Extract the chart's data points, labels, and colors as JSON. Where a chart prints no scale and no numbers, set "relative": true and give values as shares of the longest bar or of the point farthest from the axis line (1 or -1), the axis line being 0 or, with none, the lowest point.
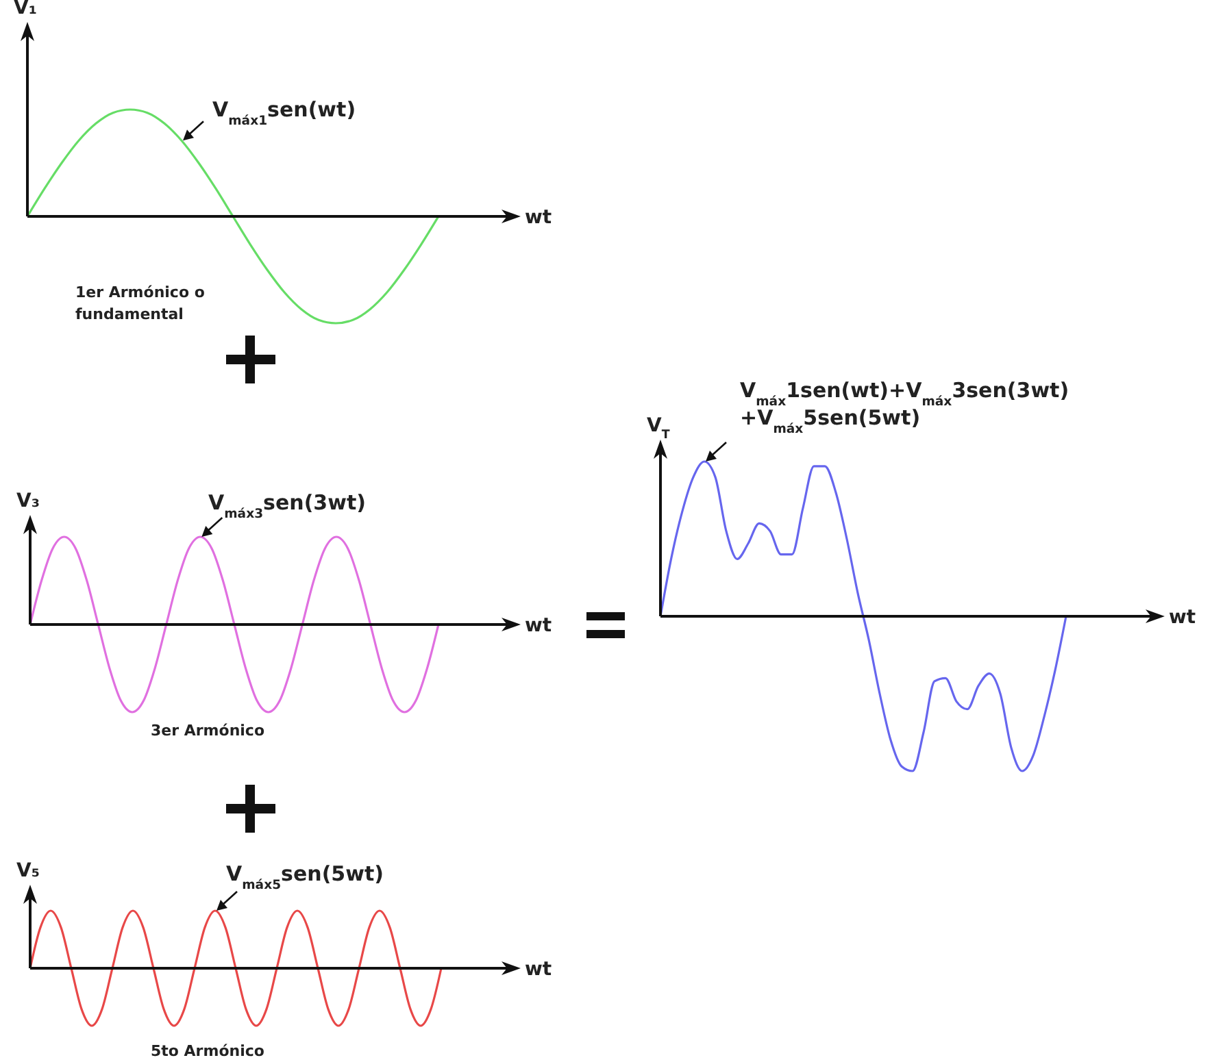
{
  "chart_data": [
    {
      "type": "line",
      "relative": true,
      "ylabel": "V₁",
      "xlabel": "wt",
      "annotations": [
        "V$_{máx1}$sen(wt)",
        "1er Armónico o fundamental"
      ],
      "categories": [
        null,
        null,
        null,
        null,
        null,
        null,
        null,
        null,
        null,
        null,
        null,
        null,
        null,
        null,
        null,
        null,
        null,
        null,
        null,
        null,
        null,
        null,
        null,
        null,
        null
      ],
      "series": [
        {
          "color": "#66dd66",
          "values": [
            0,
            0.26,
            0.5,
            0.71,
            0.87,
            0.97,
            1,
            0.97,
            0.87,
            0.71,
            0.5,
            0.26,
            0,
            -0.26,
            -0.5,
            -0.71,
            -0.87,
            -0.97,
            -1,
            -0.97,
            -0.87,
            -0.71,
            -0.5,
            -0.26,
            0
          ]
        }
      ]
    },
    {
      "type": "line",
      "relative": true,
      "ylabel": "V₃",
      "xlabel": "wt",
      "annotations": [
        "V$_{máx3}$sen(3wt)",
        "3er Armónico"
      ],
      "categories": [
        null,
        null,
        null,
        null,
        null,
        null,
        null,
        null,
        null,
        null,
        null,
        null,
        null,
        null,
        null,
        null,
        null,
        null,
        null,
        null,
        null,
        null,
        null,
        null,
        null,
        null,
        null,
        null,
        null,
        null,
        null,
        null,
        null,
        null,
        null,
        null,
        null
      ],
      "series": [
        {
          "color": "#e070e0",
          "values": [
            0,
            0.5,
            0.87,
            1,
            0.87,
            0.5,
            0,
            -0.5,
            -0.87,
            -1,
            -0.87,
            -0.5,
            0,
            0.5,
            0.87,
            1,
            0.87,
            0.5,
            0,
            -0.5,
            -0.87,
            -1,
            -0.87,
            -0.5,
            0,
            0.5,
            0.87,
            1,
            0.87,
            0.5,
            0,
            -0.5,
            -0.87,
            -1,
            -0.87,
            -0.5,
            0
          ]
        }
      ]
    },
    {
      "type": "line",
      "relative": true,
      "ylabel": "V₅",
      "xlabel": "wt",
      "annotations": [
        "V$_{máx5}$sen(5wt)",
        "5to Armónico"
      ],
      "categories": [
        null,
        null,
        null,
        null,
        null,
        null,
        null,
        null,
        null,
        null,
        null,
        null,
        null,
        null,
        null,
        null,
        null,
        null,
        null,
        null,
        null,
        null,
        null,
        null,
        null,
        null,
        null,
        null,
        null,
        null,
        null,
        null,
        null,
        null,
        null,
        null,
        null,
        null,
        null,
        null,
        null
      ],
      "series": [
        {
          "color": "#e84848",
          "values": [
            0,
            0.71,
            1,
            0.71,
            0,
            -0.71,
            -1,
            -0.71,
            0,
            0.71,
            1,
            0.71,
            0,
            -0.71,
            -1,
            -0.71,
            0,
            0.71,
            1,
            0.71,
            0,
            -0.71,
            -1,
            -0.71,
            0,
            0.71,
            1,
            0.71,
            0,
            -0.71,
            -1,
            -0.71,
            0,
            0.71,
            1,
            0.71,
            0,
            -0.71,
            -1,
            -0.71,
            0
          ]
        }
      ]
    },
    {
      "type": "line",
      "relative": true,
      "ylabel": "V$_{T}$",
      "xlabel": "wt",
      "annotations": [
        "V$_{máx}$1sen(wt)+V$_{máx}$3sen(3wt)\n+V$_{máx}$5sen(5wt)"
      ],
      "categories": [
        null,
        null,
        null,
        null,
        null,
        null,
        null,
        null,
        null,
        null,
        null,
        null,
        null,
        null,
        null,
        null,
        null,
        null,
        null,
        null,
        null,
        null,
        null,
        null,
        null,
        null,
        null,
        null,
        null,
        null,
        null,
        null,
        null,
        null,
        null,
        null,
        null,
        null
      ],
      "series": [
        {
          "color": "#6666ee",
          "values": [
            0,
            0.38,
            0.68,
            0.9,
            1,
            0.9,
            0.55,
            0.37,
            0.47,
            0.6,
            0.55,
            0.4,
            0.4,
            0.7,
            0.97,
            0.97,
            0.8,
            0.5,
            0.15,
            -0.15,
            -0.5,
            -0.8,
            -0.97,
            -1,
            -0.75,
            -0.42,
            -0.4,
            -0.55,
            -0.6,
            -0.45,
            -0.37,
            -0.5,
            -0.85,
            -1,
            -0.9,
            -0.65,
            -0.35,
            0
          ]
        }
      ]
    }
  ]
}
